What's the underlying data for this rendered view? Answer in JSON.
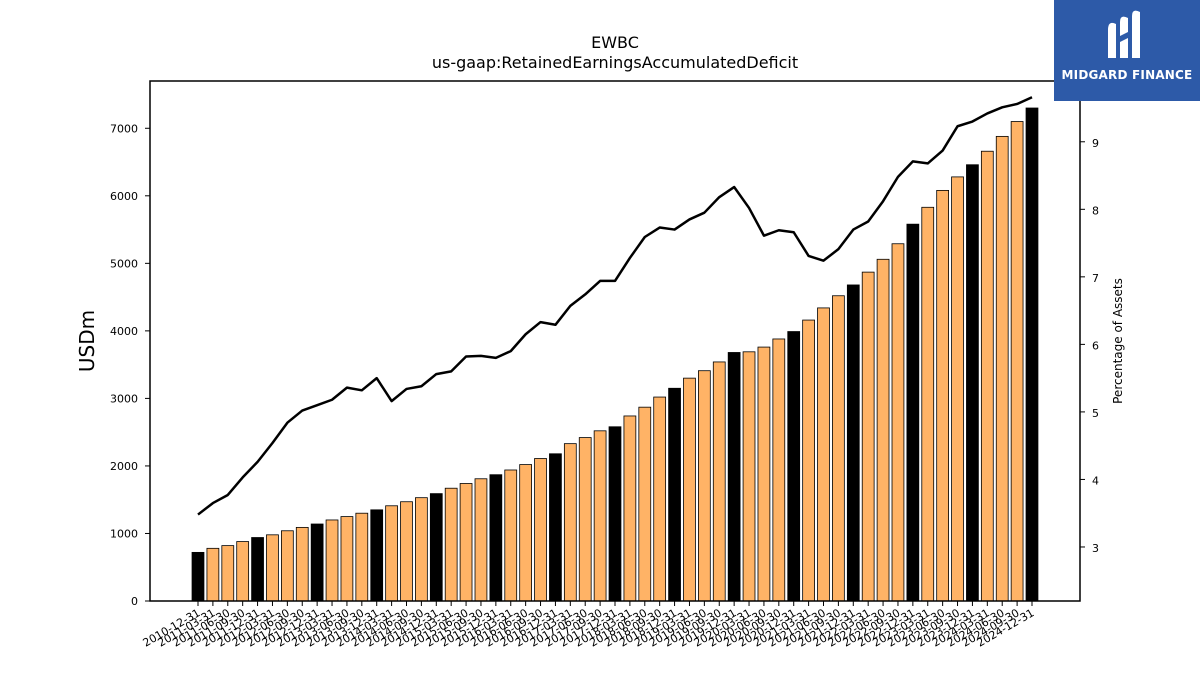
{
  "brand": {
    "name": "MIDGARD FINANCE",
    "logo_icon": "midgard-logo-icon",
    "background_color": "#2d5aa8"
  },
  "chart_data": {
    "type": "bar",
    "title": "EWBC",
    "subtitle": "us-gaap:RetainedEarningsAccumulatedDeficit",
    "ylabel": "USDm",
    "y2label": "Percentage of Assets",
    "ylim": [
      0,
      7700
    ],
    "y2lim": [
      2.2,
      9.9
    ],
    "yticks": [
      0,
      1000,
      2000,
      3000,
      4000,
      5000,
      6000,
      7000
    ],
    "y2ticks": [
      3,
      4,
      5,
      6,
      7,
      8,
      9
    ],
    "grid": false,
    "colors": {
      "annual_bar": "#000000",
      "quarter_bar": "#ffb366",
      "line": "#000000",
      "edge": "#000000"
    },
    "categories": [
      "2010-12-31",
      "2011-03-31",
      "2011-06-30",
      "2011-09-30",
      "2011-12-31",
      "2012-03-31",
      "2012-06-30",
      "2012-09-30",
      "2012-12-31",
      "2013-03-31",
      "2013-06-30",
      "2013-09-30",
      "2013-12-31",
      "2014-03-31",
      "2014-06-30",
      "2014-09-30",
      "2014-12-31",
      "2015-03-31",
      "2015-06-30",
      "2015-09-30",
      "2015-12-31",
      "2016-03-31",
      "2016-06-30",
      "2016-09-30",
      "2016-12-31",
      "2017-03-31",
      "2017-06-30",
      "2017-09-30",
      "2017-12-31",
      "2018-03-31",
      "2018-06-30",
      "2018-09-30",
      "2018-12-31",
      "2019-03-31",
      "2019-06-30",
      "2019-09-30",
      "2019-12-31",
      "2020-03-31",
      "2020-06-30",
      "2020-09-30",
      "2020-12-31",
      "2021-03-31",
      "2021-06-30",
      "2021-09-30",
      "2021-12-31",
      "2022-03-31",
      "2022-06-30",
      "2022-09-30",
      "2022-12-31",
      "2023-03-31",
      "2023-06-30",
      "2023-09-30",
      "2023-12-31",
      "2024-03-31",
      "2024-06-30",
      "2024-09-30",
      "2024-12-31"
    ],
    "series": [
      {
        "type": "bar",
        "axis": "left",
        "values": [
          720,
          780,
          820,
          880,
          940,
          980,
          1040,
          1090,
          1140,
          1200,
          1250,
          1300,
          1350,
          1410,
          1470,
          1530,
          1590,
          1670,
          1740,
          1810,
          1870,
          1940,
          2020,
          2110,
          2180,
          2330,
          2420,
          2520,
          2580,
          2740,
          2870,
          3020,
          3150,
          3300,
          3410,
          3540,
          3680,
          3690,
          3760,
          3880,
          3990,
          4160,
          4340,
          4520,
          4680,
          4870,
          5060,
          5290,
          5580,
          5830,
          6080,
          6280,
          6460,
          6660,
          6880,
          7100,
          7300
        ]
      },
      {
        "type": "line",
        "axis": "right",
        "values": [
          3.48,
          3.65,
          3.77,
          4.03,
          4.26,
          4.54,
          4.84,
          5.02,
          5.1,
          5.18,
          5.36,
          5.32,
          5.5,
          5.16,
          5.34,
          5.38,
          5.56,
          5.6,
          5.82,
          5.83,
          5.8,
          5.9,
          6.15,
          6.33,
          6.29,
          6.57,
          6.74,
          6.94,
          6.94,
          7.28,
          7.59,
          7.73,
          7.7,
          7.85,
          7.95,
          8.18,
          8.33,
          8.02,
          7.61,
          7.69,
          7.66,
          7.31,
          7.24,
          7.41,
          7.7,
          7.82,
          8.12,
          8.48,
          8.71,
          8.68,
          8.87,
          9.23,
          9.3,
          9.42,
          9.51,
          9.56,
          9.66
        ]
      }
    ]
  }
}
